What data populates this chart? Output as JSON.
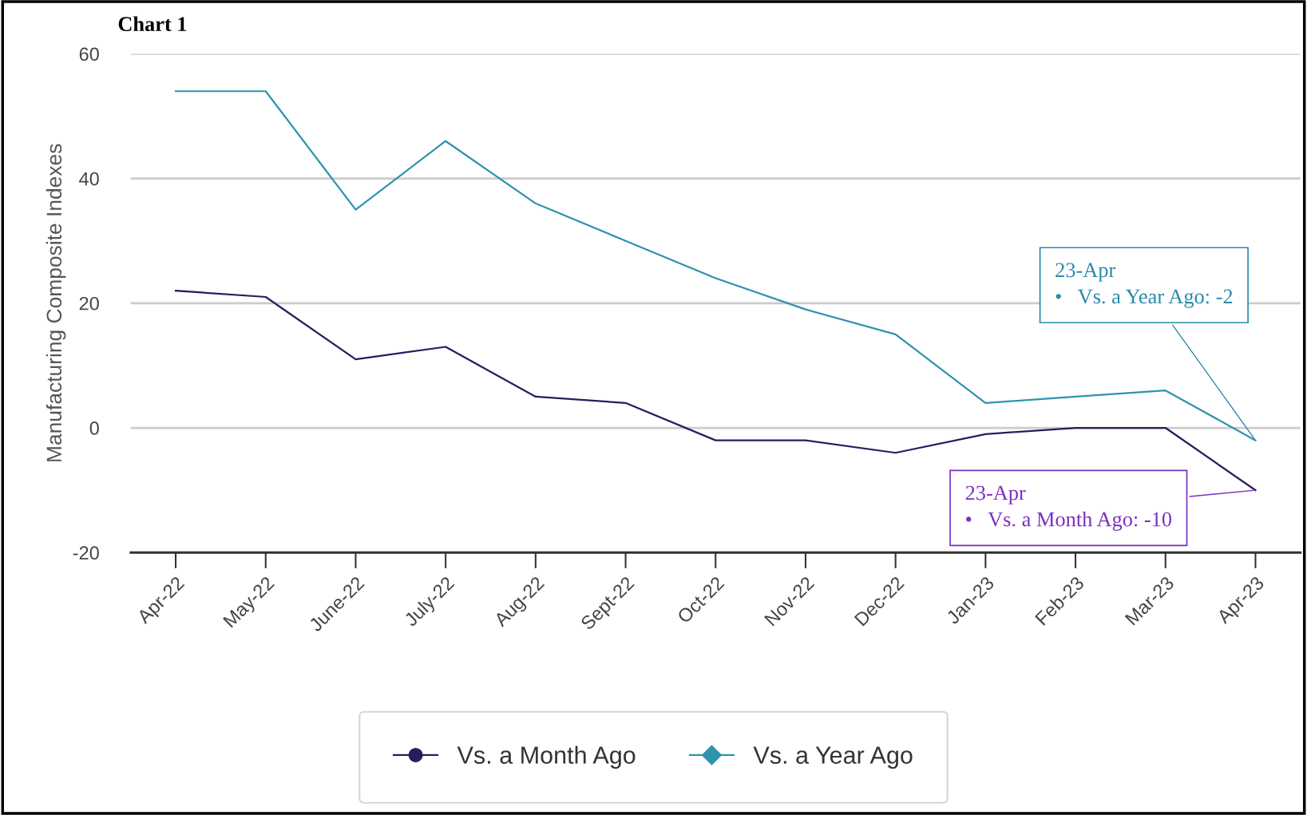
{
  "chart_data": {
    "type": "line",
    "title": "Chart 1",
    "ylabel": "Manufacturing Composite Indexes",
    "categories": [
      "Apr-22",
      "May-22",
      "June-22",
      "July-22",
      "Aug-22",
      "Sept-22",
      "Oct-22",
      "Nov-22",
      "Dec-22",
      "Jan-23",
      "Feb-23",
      "Mar-23",
      "Apr-23"
    ],
    "series": [
      {
        "name": "Vs. a Month Ago",
        "color": "#2b1b5e",
        "values": [
          22,
          21,
          11,
          13,
          5,
          4,
          -2,
          -2,
          -4,
          -1,
          0,
          0,
          -10
        ]
      },
      {
        "name": "Vs. a Year Ago",
        "color": "#2e93ad",
        "values": [
          54,
          54,
          35,
          46,
          36,
          30,
          24,
          19,
          15,
          4,
          5,
          6,
          -2
        ]
      }
    ],
    "annotations": [
      {
        "text": "23-Apr\n•   Vs. a Year Ago: -2",
        "x": "Apr-23",
        "y": -2
      },
      {
        "text": "23-Apr\n•   Vs. a Month Ago: -10",
        "x": "Apr-23",
        "y": -10
      }
    ],
    "ylim": [
      -20,
      60
    ],
    "yticks": [
      -20,
      0,
      20,
      40,
      60
    ],
    "grid": "y",
    "legend": "bottom"
  }
}
